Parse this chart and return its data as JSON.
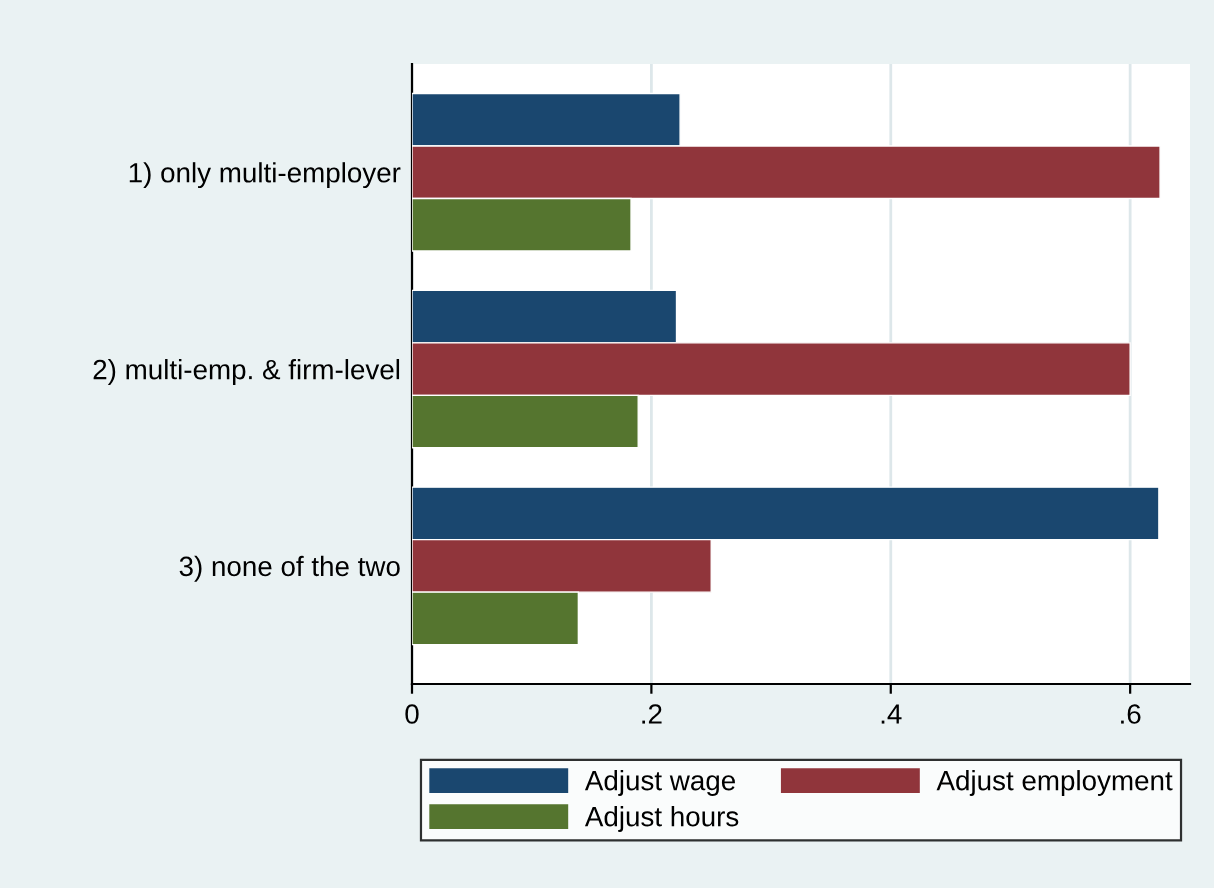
{
  "chart_data": {
    "type": "bar",
    "orientation": "horizontal",
    "categories": [
      "1) only multi-employer",
      "2) multi-emp. & firm-level",
      "3) none of the two"
    ],
    "series": [
      {
        "name": "Adjust wage",
        "color": "#1a476f",
        "values": [
          0.224,
          0.221,
          0.624
        ]
      },
      {
        "name": "Adjust employment",
        "color": "#90353b",
        "values": [
          0.625,
          0.6,
          0.25
        ]
      },
      {
        "name": "Adjust hours",
        "color": "#55752f",
        "values": [
          0.183,
          0.189,
          0.139
        ]
      }
    ],
    "xlim": [
      0,
      0.65
    ],
    "xticks": [
      0,
      {
        "value": 0.2,
        "label": ".2"
      },
      {
        "value": 0.4,
        "label": ".4"
      },
      {
        "value": 0.6,
        "label": ".6"
      }
    ],
    "grid": "x",
    "legend": "bottom"
  }
}
